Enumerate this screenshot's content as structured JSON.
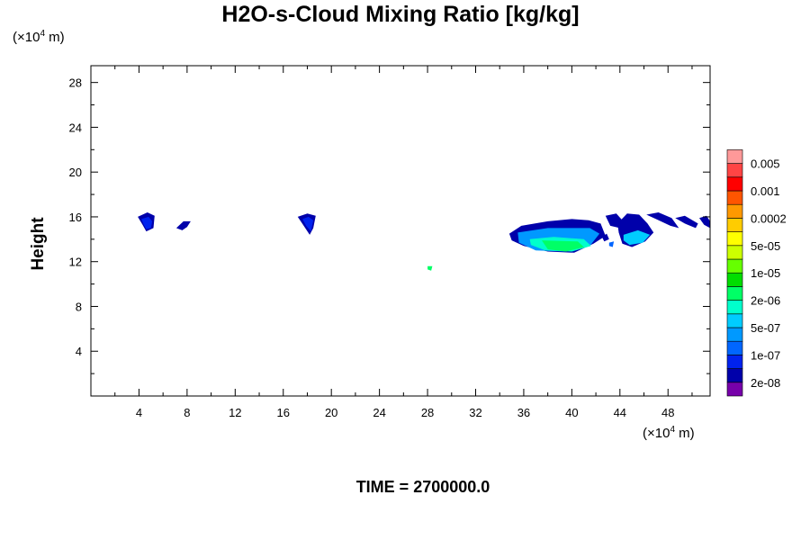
{
  "chart_data": {
    "type": "heatmap",
    "title": "H2O-s-Cloud Mixing Ratio [kg/kg]",
    "ylabel": "Height",
    "x_unit": {
      "prefix": "(×10",
      "exp": "4",
      "suffix": " m)"
    },
    "y_unit": {
      "prefix": "(×10",
      "exp": "4",
      "suffix": " m)"
    },
    "footer": "TIME = 2700000.0",
    "xlim": [
      0,
      51.5
    ],
    "ylim": [
      0,
      29.5
    ],
    "x_ticks": [
      4,
      8,
      12,
      16,
      20,
      24,
      28,
      32,
      36,
      40,
      44,
      48
    ],
    "y_ticks": [
      4,
      8,
      12,
      16,
      20,
      24,
      28
    ],
    "colorbar": {
      "colors": [
        "#7700aa",
        "#0000aa",
        "#0022ee",
        "#0066ff",
        "#0099ff",
        "#00ccff",
        "#00ffcc",
        "#00ff66",
        "#00dd00",
        "#66ff00",
        "#ccff00",
        "#ffff00",
        "#ffcc00",
        "#ff9900",
        "#ff5500",
        "#ff0000",
        "#ff4444",
        "#ff9999"
      ],
      "labels": [
        "2e-08",
        "1e-07",
        "5e-07",
        "2e-06",
        "1e-05",
        "5e-05",
        "0.0002",
        "0.001",
        "0.005"
      ]
    },
    "cloud_regions": [
      {
        "level": 1,
        "points": [
          [
            3.9,
            16.0
          ],
          [
            4.7,
            16.4
          ],
          [
            5.3,
            16.1
          ],
          [
            5.2,
            15.0
          ],
          [
            4.6,
            14.7
          ],
          [
            4.3,
            15.3
          ]
        ]
      },
      {
        "level": 2,
        "points": [
          [
            4.2,
            15.8
          ],
          [
            4.8,
            16.0
          ],
          [
            5.1,
            15.6
          ],
          [
            5.0,
            15.0
          ],
          [
            4.6,
            14.9
          ],
          [
            4.4,
            15.3
          ]
        ]
      },
      {
        "level": 1,
        "points": [
          [
            7.1,
            15.0
          ],
          [
            7.7,
            15.6
          ],
          [
            8.3,
            15.6
          ],
          [
            8.0,
            15.1
          ],
          [
            7.6,
            14.8
          ]
        ]
      },
      {
        "level": 1,
        "points": [
          [
            17.2,
            16.0
          ],
          [
            18.0,
            16.3
          ],
          [
            18.7,
            16.1
          ],
          [
            18.5,
            15.0
          ],
          [
            18.2,
            14.4
          ],
          [
            17.7,
            15.2
          ]
        ]
      },
      {
        "level": 2,
        "points": [
          [
            17.6,
            15.8
          ],
          [
            18.1,
            16.0
          ],
          [
            18.5,
            15.7
          ],
          [
            18.3,
            14.7
          ],
          [
            17.9,
            15.2
          ]
        ]
      },
      {
        "level": 7,
        "points": [
          [
            28.0,
            11.6
          ],
          [
            28.4,
            11.6
          ],
          [
            28.3,
            11.2
          ],
          [
            28.0,
            11.3
          ]
        ]
      },
      {
        "level": 1,
        "points": [
          [
            34.8,
            14.5
          ],
          [
            35.8,
            15.2
          ],
          [
            38.0,
            15.6
          ],
          [
            40.0,
            15.8
          ],
          [
            41.4,
            15.7
          ],
          [
            42.4,
            15.4
          ],
          [
            42.8,
            14.3
          ],
          [
            41.8,
            13.6
          ],
          [
            40.2,
            12.8
          ],
          [
            38.0,
            12.9
          ],
          [
            36.0,
            13.4
          ],
          [
            35.0,
            13.9
          ]
        ]
      },
      {
        "level": 4,
        "points": [
          [
            35.5,
            14.6
          ],
          [
            38.0,
            15.0
          ],
          [
            41.5,
            15.0
          ],
          [
            42.3,
            14.5
          ],
          [
            41.5,
            13.4
          ],
          [
            39.5,
            12.9
          ],
          [
            37.0,
            13.0
          ],
          [
            35.6,
            13.7
          ]
        ]
      },
      {
        "level": 6,
        "points": [
          [
            36.5,
            14.0
          ],
          [
            38.5,
            14.2
          ],
          [
            41.0,
            14.0
          ],
          [
            41.6,
            13.4
          ],
          [
            40.0,
            12.9
          ],
          [
            37.8,
            13.0
          ],
          [
            36.6,
            13.5
          ]
        ]
      },
      {
        "level": 7,
        "points": [
          [
            37.5,
            13.9
          ],
          [
            40.5,
            13.8
          ],
          [
            41.0,
            13.3
          ],
          [
            39.5,
            12.9
          ],
          [
            38.0,
            13.1
          ]
        ]
      },
      {
        "level": 1,
        "points": [
          [
            42.8,
            16.1
          ],
          [
            43.7,
            16.3
          ],
          [
            44.2,
            15.7
          ],
          [
            44.0,
            15.0
          ],
          [
            43.2,
            15.2
          ]
        ]
      },
      {
        "level": 1,
        "points": [
          [
            42.5,
            14.2
          ],
          [
            42.9,
            14.5
          ],
          [
            43.1,
            14.0
          ],
          [
            42.7,
            13.8
          ]
        ]
      },
      {
        "level": 3,
        "points": [
          [
            43.1,
            13.7
          ],
          [
            43.5,
            13.8
          ],
          [
            43.4,
            13.3
          ],
          [
            43.1,
            13.4
          ]
        ]
      },
      {
        "level": 1,
        "points": [
          [
            43.8,
            15.4
          ],
          [
            44.6,
            16.3
          ],
          [
            45.6,
            16.2
          ],
          [
            46.3,
            15.4
          ],
          [
            46.8,
            14.6
          ],
          [
            46.1,
            13.8
          ],
          [
            45.0,
            13.3
          ],
          [
            44.2,
            13.6
          ],
          [
            43.9,
            14.6
          ]
        ]
      },
      {
        "level": 5,
        "points": [
          [
            44.3,
            14.4
          ],
          [
            45.5,
            14.8
          ],
          [
            46.5,
            14.4
          ],
          [
            45.9,
            13.7
          ],
          [
            44.8,
            13.5
          ],
          [
            44.3,
            13.9
          ]
        ]
      },
      {
        "level": 1,
        "points": [
          [
            46.2,
            16.2
          ],
          [
            47.2,
            16.4
          ],
          [
            48.3,
            15.9
          ],
          [
            48.9,
            15.0
          ],
          [
            48.2,
            15.2
          ],
          [
            47.0,
            15.8
          ]
        ]
      },
      {
        "level": 1,
        "points": [
          [
            48.6,
            15.9
          ],
          [
            49.4,
            16.1
          ],
          [
            50.5,
            15.4
          ],
          [
            50.3,
            15.0
          ],
          [
            49.4,
            15.4
          ]
        ]
      },
      {
        "level": 1,
        "points": [
          [
            50.6,
            15.9
          ],
          [
            51.2,
            16.1
          ],
          [
            51.5,
            15.6
          ],
          [
            51.5,
            15.0
          ],
          [
            51.0,
            15.3
          ]
        ]
      }
    ]
  }
}
